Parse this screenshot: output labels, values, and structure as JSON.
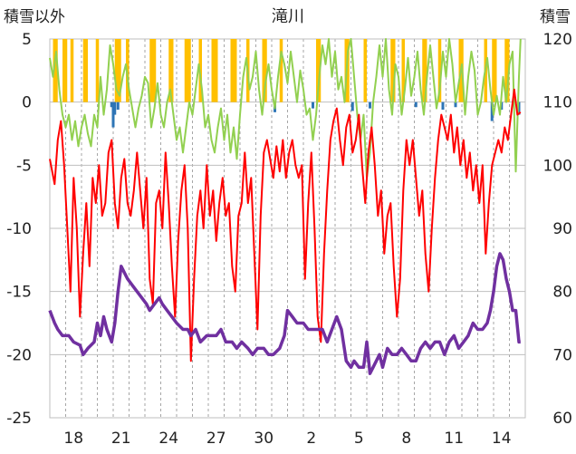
{
  "chart_data": {
    "type": "line",
    "title": "滝川",
    "left_axis_label": "積雪以外",
    "right_axis_label": "積雪",
    "left_axis": {
      "min": -25,
      "max": 5,
      "ticks": [
        5,
        0,
        -5,
        -10,
        -15,
        -20,
        -25
      ]
    },
    "right_axis": {
      "min": 60,
      "max": 120,
      "ticks": [
        120,
        110,
        100,
        90,
        80,
        70,
        60
      ]
    },
    "x_labels": [
      "18",
      "21",
      "24",
      "27",
      "30",
      "2",
      "5",
      "8",
      "11",
      "14"
    ],
    "x_label_positions": [
      1.5,
      4.5,
      7.5,
      10.5,
      13.5,
      16.5,
      19.5,
      22.5,
      25.5,
      28.5
    ],
    "days": 30,
    "grid": "dashed vertical every day; solid horizontal at left axis ticks",
    "colors": {
      "sunshine_bar": "#ffc000",
      "precip_bar": "#2e75b6",
      "humidity_line": "#92d050",
      "temperature_line": "#ff0000",
      "snow_depth_line": "#7030a0"
    },
    "sunshine_bars": [
      [
        0.2,
        0.5
      ],
      [
        0.8,
        1.1
      ],
      [
        1.3,
        1.5
      ],
      [
        2.1,
        2.4
      ],
      [
        2.9,
        3.1
      ],
      [
        4.1,
        4.5
      ],
      [
        4.8,
        5.0
      ],
      [
        6.3,
        6.7
      ],
      [
        7.5,
        7.8
      ],
      [
        8.5,
        8.9
      ],
      [
        9.4,
        9.6
      ],
      [
        10.2,
        10.6
      ],
      [
        11.4,
        11.8
      ],
      [
        12.4,
        12.6
      ],
      [
        13.4,
        13.7
      ],
      [
        14.5,
        14.7
      ],
      [
        16.8,
        17.1
      ],
      [
        18.6,
        18.9
      ],
      [
        19.8,
        20.0
      ],
      [
        21.5,
        21.8
      ],
      [
        22.2,
        22.4
      ],
      [
        23.5,
        23.8
      ],
      [
        24.5,
        24.7
      ],
      [
        25.8,
        26.1
      ],
      [
        27.4,
        27.6
      ],
      [
        27.9,
        28.2
      ],
      [
        28.7,
        29.0
      ]
    ],
    "precip_bars": [
      [
        3.9,
        0.4
      ],
      [
        4.0,
        2.0
      ],
      [
        4.1,
        1.0
      ],
      [
        4.3,
        0.6
      ],
      [
        14.2,
        0.8
      ],
      [
        16.6,
        0.5
      ],
      [
        19.1,
        0.7
      ],
      [
        20.2,
        0.5
      ],
      [
        23.1,
        0.4
      ],
      [
        24.8,
        0.6
      ],
      [
        25.6,
        0.4
      ],
      [
        27.9,
        1.5
      ],
      [
        28.5,
        0.6
      ],
      [
        29.6,
        1.0
      ]
    ],
    "temperature": [
      [
        0,
        -4.5
      ],
      [
        0.3,
        -6.5
      ],
      [
        0.5,
        -3
      ],
      [
        0.7,
        -1.5
      ],
      [
        0.9,
        -5
      ],
      [
        1.1,
        -10
      ],
      [
        1.3,
        -15
      ],
      [
        1.5,
        -6
      ],
      [
        1.7,
        -10
      ],
      [
        1.9,
        -17
      ],
      [
        2.1,
        -12
      ],
      [
        2.3,
        -8
      ],
      [
        2.5,
        -13
      ],
      [
        2.7,
        -6
      ],
      [
        2.9,
        -8
      ],
      [
        3.1,
        -5
      ],
      [
        3.3,
        -9
      ],
      [
        3.5,
        -8
      ],
      [
        3.7,
        -4
      ],
      [
        3.9,
        -3
      ],
      [
        4.1,
        -8
      ],
      [
        4.3,
        -10
      ],
      [
        4.5,
        -6
      ],
      [
        4.7,
        -4.5
      ],
      [
        4.9,
        -8
      ],
      [
        5.1,
        -9
      ],
      [
        5.3,
        -7
      ],
      [
        5.5,
        -4
      ],
      [
        5.7,
        -7
      ],
      [
        5.9,
        -10
      ],
      [
        6.1,
        -6
      ],
      [
        6.3,
        -14
      ],
      [
        6.5,
        -16
      ],
      [
        6.7,
        -8
      ],
      [
        6.9,
        -7
      ],
      [
        7.1,
        -10
      ],
      [
        7.3,
        -4
      ],
      [
        7.5,
        -8
      ],
      [
        7.7,
        -13
      ],
      [
        7.9,
        -17
      ],
      [
        8.1,
        -11
      ],
      [
        8.3,
        -7
      ],
      [
        8.5,
        -5
      ],
      [
        8.7,
        -10
      ],
      [
        8.9,
        -20.5
      ],
      [
        9.1,
        -14
      ],
      [
        9.3,
        -9
      ],
      [
        9.5,
        -7
      ],
      [
        9.7,
        -10
      ],
      [
        9.9,
        -5
      ],
      [
        10.1,
        -9
      ],
      [
        10.3,
        -7
      ],
      [
        10.5,
        -11
      ],
      [
        10.7,
        -8
      ],
      [
        10.9,
        -6
      ],
      [
        11.1,
        -9
      ],
      [
        11.3,
        -8
      ],
      [
        11.5,
        -13
      ],
      [
        11.7,
        -15
      ],
      [
        11.9,
        -9
      ],
      [
        12.1,
        -8
      ],
      [
        12.3,
        -4
      ],
      [
        12.5,
        -8
      ],
      [
        12.7,
        -6
      ],
      [
        12.9,
        -12
      ],
      [
        13.1,
        -18
      ],
      [
        13.3,
        -9
      ],
      [
        13.5,
        -4
      ],
      [
        13.7,
        -3
      ],
      [
        13.9,
        -4.5
      ],
      [
        14.1,
        -6
      ],
      [
        14.3,
        -3.5
      ],
      [
        14.5,
        -5.5
      ],
      [
        14.7,
        -3
      ],
      [
        14.9,
        -6
      ],
      [
        15.1,
        -4
      ],
      [
        15.3,
        -3
      ],
      [
        15.5,
        -5
      ],
      [
        15.7,
        -6
      ],
      [
        15.9,
        -5
      ],
      [
        16.1,
        -14
      ],
      [
        16.3,
        -8
      ],
      [
        16.5,
        -4
      ],
      [
        16.7,
        -10
      ],
      [
        16.9,
        -17
      ],
      [
        17.1,
        -19
      ],
      [
        17.3,
        -12
      ],
      [
        17.5,
        -7
      ],
      [
        17.7,
        -3
      ],
      [
        17.9,
        -1.5
      ],
      [
        18.1,
        -0.5
      ],
      [
        18.3,
        -3
      ],
      [
        18.5,
        -5
      ],
      [
        18.7,
        -2
      ],
      [
        18.9,
        -1
      ],
      [
        19.1,
        -4
      ],
      [
        19.3,
        -3
      ],
      [
        19.5,
        -1
      ],
      [
        19.7,
        -5
      ],
      [
        19.9,
        -8
      ],
      [
        20.1,
        -4
      ],
      [
        20.3,
        -2
      ],
      [
        20.5,
        -5
      ],
      [
        20.7,
        -9
      ],
      [
        20.9,
        -7
      ],
      [
        21.1,
        -12
      ],
      [
        21.3,
        -9
      ],
      [
        21.5,
        -8
      ],
      [
        21.7,
        -13
      ],
      [
        21.9,
        -17
      ],
      [
        22.1,
        -14
      ],
      [
        22.3,
        -7
      ],
      [
        22.5,
        -3
      ],
      [
        22.7,
        -5
      ],
      [
        22.9,
        -3
      ],
      [
        23.1,
        -6
      ],
      [
        23.3,
        -9
      ],
      [
        23.5,
        -7
      ],
      [
        23.7,
        -12
      ],
      [
        23.9,
        -15
      ],
      [
        24.1,
        -10
      ],
      [
        24.3,
        -6
      ],
      [
        24.5,
        -3
      ],
      [
        24.7,
        -1
      ],
      [
        24.9,
        -2
      ],
      [
        25.1,
        -3
      ],
      [
        25.3,
        -1
      ],
      [
        25.5,
        -4
      ],
      [
        25.7,
        -2
      ],
      [
        25.9,
        -5
      ],
      [
        26.1,
        -3
      ],
      [
        26.3,
        -6
      ],
      [
        26.5,
        -4
      ],
      [
        26.7,
        -7
      ],
      [
        26.9,
        -5
      ],
      [
        27.1,
        -8
      ],
      [
        27.3,
        -5
      ],
      [
        27.5,
        -12
      ],
      [
        27.7,
        -8
      ],
      [
        27.9,
        -5
      ],
      [
        28.1,
        -4
      ],
      [
        28.3,
        -3
      ],
      [
        28.5,
        -4
      ],
      [
        28.7,
        -2
      ],
      [
        28.9,
        -3
      ],
      [
        29.1,
        -1
      ],
      [
        29.3,
        1
      ],
      [
        29.5,
        -1
      ],
      [
        29.7,
        -0.8
      ]
    ],
    "humidity": [
      [
        0,
        3.5
      ],
      [
        0.2,
        2
      ],
      [
        0.4,
        4
      ],
      [
        0.6,
        1
      ],
      [
        0.8,
        -1
      ],
      [
        1.0,
        -2
      ],
      [
        1.2,
        -1
      ],
      [
        1.4,
        -3
      ],
      [
        1.6,
        -1.5
      ],
      [
        1.8,
        -3.5
      ],
      [
        2.0,
        -2
      ],
      [
        2.2,
        -1
      ],
      [
        2.4,
        -2.5
      ],
      [
        2.6,
        -3.5
      ],
      [
        2.8,
        -1
      ],
      [
        3.0,
        -2
      ],
      [
        3.2,
        2
      ],
      [
        3.4,
        -1
      ],
      [
        3.6,
        1
      ],
      [
        3.8,
        4.5
      ],
      [
        4.0,
        3
      ],
      [
        4.2,
        1
      ],
      [
        4.4,
        0.5
      ],
      [
        4.6,
        2
      ],
      [
        4.8,
        3
      ],
      [
        5.0,
        1
      ],
      [
        5.2,
        -0.5
      ],
      [
        5.4,
        -2
      ],
      [
        5.6,
        -0.5
      ],
      [
        5.8,
        0.5
      ],
      [
        6.0,
        2
      ],
      [
        6.2,
        1.5
      ],
      [
        6.4,
        -2
      ],
      [
        6.6,
        -0.5
      ],
      [
        6.8,
        1.5
      ],
      [
        7.0,
        -1
      ],
      [
        7.2,
        -2
      ],
      [
        7.4,
        0
      ],
      [
        7.6,
        1
      ],
      [
        7.8,
        -1
      ],
      [
        8.0,
        -3
      ],
      [
        8.2,
        -2
      ],
      [
        8.4,
        -4
      ],
      [
        8.6,
        -2
      ],
      [
        8.8,
        0
      ],
      [
        9.0,
        -1
      ],
      [
        9.2,
        1
      ],
      [
        9.4,
        3
      ],
      [
        9.6,
        1
      ],
      [
        9.8,
        -2
      ],
      [
        10.0,
        -1
      ],
      [
        10.2,
        -3
      ],
      [
        10.4,
        -4
      ],
      [
        10.6,
        -2
      ],
      [
        10.8,
        -0.5
      ],
      [
        11.0,
        -3
      ],
      [
        11.2,
        -1
      ],
      [
        11.4,
        -4
      ],
      [
        11.6,
        -2
      ],
      [
        11.8,
        -4.5
      ],
      [
        12.0,
        -1
      ],
      [
        12.2,
        2
      ],
      [
        12.4,
        3.5
      ],
      [
        12.6,
        1
      ],
      [
        12.8,
        2
      ],
      [
        13.0,
        4
      ],
      [
        13.2,
        1
      ],
      [
        13.4,
        -1
      ],
      [
        13.6,
        1.5
      ],
      [
        13.8,
        3
      ],
      [
        14.0,
        1
      ],
      [
        14.2,
        -0.5
      ],
      [
        14.4,
        2
      ],
      [
        14.6,
        4
      ],
      [
        14.8,
        3
      ],
      [
        15.0,
        1.5
      ],
      [
        15.2,
        4
      ],
      [
        15.4,
        2
      ],
      [
        15.6,
        0
      ],
      [
        15.8,
        2.5
      ],
      [
        16.0,
        1
      ],
      [
        16.2,
        -1
      ],
      [
        16.4,
        -0.5
      ],
      [
        16.6,
        -3
      ],
      [
        16.8,
        -1
      ],
      [
        17.0,
        2
      ],
      [
        17.2,
        4.5
      ],
      [
        17.4,
        3
      ],
      [
        17.6,
        5
      ],
      [
        17.8,
        2
      ],
      [
        18.0,
        4
      ],
      [
        18.2,
        1
      ],
      [
        18.4,
        2
      ],
      [
        18.6,
        0
      ],
      [
        18.8,
        4
      ],
      [
        19.0,
        5
      ],
      [
        19.2,
        2
      ],
      [
        19.4,
        -1
      ],
      [
        19.6,
        -3
      ],
      [
        19.8,
        -1
      ],
      [
        20.0,
        -6
      ],
      [
        20.2,
        -4
      ],
      [
        20.4,
        0
      ],
      [
        20.6,
        2
      ],
      [
        20.8,
        4.5
      ],
      [
        21.0,
        2
      ],
      [
        21.2,
        5
      ],
      [
        21.4,
        1
      ],
      [
        21.6,
        -1
      ],
      [
        21.8,
        3
      ],
      [
        22.0,
        2
      ],
      [
        22.2,
        -1
      ],
      [
        22.4,
        1
      ],
      [
        22.6,
        3.5
      ],
      [
        22.8,
        0.5
      ],
      [
        23.0,
        2
      ],
      [
        23.2,
        4
      ],
      [
        23.4,
        1
      ],
      [
        23.6,
        -1
      ],
      [
        23.8,
        2
      ],
      [
        24.0,
        4.5
      ],
      [
        24.2,
        2
      ],
      [
        24.4,
        -0.5
      ],
      [
        24.6,
        1
      ],
      [
        24.8,
        4
      ],
      [
        25.0,
        2
      ],
      [
        25.2,
        5
      ],
      [
        25.4,
        3
      ],
      [
        25.6,
        0
      ],
      [
        25.8,
        1.5
      ],
      [
        26.0,
        3
      ],
      [
        26.2,
        -1
      ],
      [
        26.4,
        2
      ],
      [
        26.6,
        4
      ],
      [
        26.8,
        2.5
      ],
      [
        27.0,
        -1
      ],
      [
        27.2,
        0
      ],
      [
        27.4,
        2
      ],
      [
        27.6,
        3.5
      ],
      [
        27.8,
        1
      ],
      [
        28.0,
        -1
      ],
      [
        28.2,
        0.5
      ],
      [
        28.4,
        -1
      ],
      [
        28.6,
        2
      ],
      [
        28.8,
        0
      ],
      [
        29.0,
        3
      ],
      [
        29.2,
        4
      ],
      [
        29.4,
        -5.5
      ],
      [
        29.6,
        2
      ],
      [
        29.7,
        5
      ]
    ],
    "snow_depth": [
      [
        0,
        77
      ],
      [
        0.3,
        75
      ],
      [
        0.5,
        74
      ],
      [
        0.8,
        73
      ],
      [
        1.2,
        73
      ],
      [
        1.5,
        72
      ],
      [
        1.9,
        71.5
      ],
      [
        2.1,
        70
      ],
      [
        2.4,
        71
      ],
      [
        2.8,
        72
      ],
      [
        3.0,
        75
      ],
      [
        3.2,
        73
      ],
      [
        3.4,
        76
      ],
      [
        3.6,
        74
      ],
      [
        3.9,
        72
      ],
      [
        4.1,
        75
      ],
      [
        4.3,
        80
      ],
      [
        4.5,
        84
      ],
      [
        4.7,
        83
      ],
      [
        4.9,
        82
      ],
      [
        5.2,
        81
      ],
      [
        5.5,
        80
      ],
      [
        5.8,
        79
      ],
      [
        6.1,
        78
      ],
      [
        6.3,
        77
      ],
      [
        6.6,
        78
      ],
      [
        6.9,
        79
      ],
      [
        7.1,
        78
      ],
      [
        7.4,
        77
      ],
      [
        7.7,
        76
      ],
      [
        8.0,
        75
      ],
      [
        8.4,
        74
      ],
      [
        8.7,
        74
      ],
      [
        8.9,
        73
      ],
      [
        9.2,
        74
      ],
      [
        9.5,
        72
      ],
      [
        9.9,
        73
      ],
      [
        10.2,
        73
      ],
      [
        10.5,
        73
      ],
      [
        10.8,
        74
      ],
      [
        11.1,
        72
      ],
      [
        11.5,
        72
      ],
      [
        11.8,
        71
      ],
      [
        12.1,
        72
      ],
      [
        12.5,
        71
      ],
      [
        12.8,
        70
      ],
      [
        13.1,
        71
      ],
      [
        13.5,
        71
      ],
      [
        13.8,
        70
      ],
      [
        14.1,
        70
      ],
      [
        14.5,
        71
      ],
      [
        14.8,
        73
      ],
      [
        15.0,
        77
      ],
      [
        15.3,
        76
      ],
      [
        15.6,
        75
      ],
      [
        16.0,
        75
      ],
      [
        16.3,
        74
      ],
      [
        16.6,
        74
      ],
      [
        16.9,
        74
      ],
      [
        17.2,
        74
      ],
      [
        17.5,
        72
      ],
      [
        17.8,
        74
      ],
      [
        18.1,
        76
      ],
      [
        18.4,
        74
      ],
      [
        18.7,
        69
      ],
      [
        19.0,
        68
      ],
      [
        19.2,
        69
      ],
      [
        19.5,
        68
      ],
      [
        19.8,
        68
      ],
      [
        20.0,
        72
      ],
      [
        20.2,
        67
      ],
      [
        20.4,
        68
      ],
      [
        20.6,
        69
      ],
      [
        20.8,
        70
      ],
      [
        21.0,
        68
      ],
      [
        21.3,
        71
      ],
      [
        21.6,
        70
      ],
      [
        21.9,
        70
      ],
      [
        22.2,
        71
      ],
      [
        22.5,
        70
      ],
      [
        22.8,
        69
      ],
      [
        23.1,
        69
      ],
      [
        23.4,
        71
      ],
      [
        23.7,
        72
      ],
      [
        24.0,
        71
      ],
      [
        24.3,
        72
      ],
      [
        24.6,
        72
      ],
      [
        24.9,
        70
      ],
      [
        25.2,
        72
      ],
      [
        25.5,
        73
      ],
      [
        25.8,
        71
      ],
      [
        26.1,
        72
      ],
      [
        26.4,
        73
      ],
      [
        26.7,
        75
      ],
      [
        27.0,
        74
      ],
      [
        27.3,
        74
      ],
      [
        27.6,
        75
      ],
      [
        27.8,
        77
      ],
      [
        28.0,
        80
      ],
      [
        28.2,
        84
      ],
      [
        28.4,
        86
      ],
      [
        28.6,
        85
      ],
      [
        28.8,
        82
      ],
      [
        29.0,
        80
      ],
      [
        29.2,
        77
      ],
      [
        29.4,
        77
      ],
      [
        29.6,
        72
      ],
      [
        29.7,
        72
      ]
    ]
  }
}
